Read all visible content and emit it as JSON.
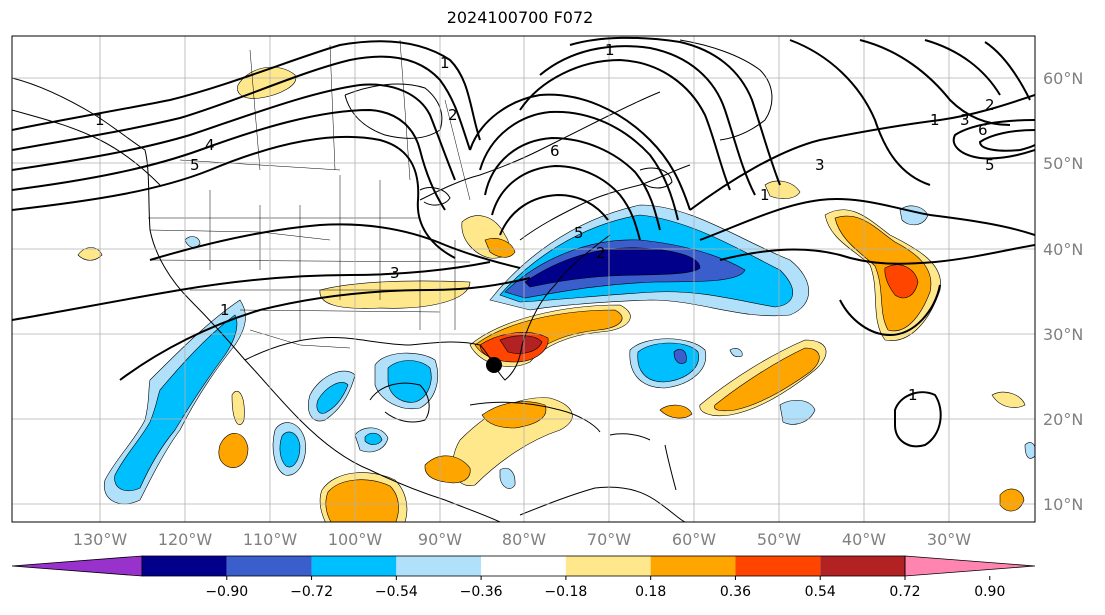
{
  "title": "2024100700 F072",
  "longitude_labels": [
    "130°W",
    "120°W",
    "110°W",
    "100°W",
    "90°W",
    "80°W",
    "70°W",
    "60°W",
    "50°W",
    "40°W",
    "30°W"
  ],
  "latitude_labels": [
    "60°N",
    "50°N",
    "40°N",
    "30°N",
    "20°N",
    "10°N"
  ],
  "colorbar": {
    "ticks": [
      "−0.90",
      "−0.72",
      "−0.54",
      "−0.36",
      "−0.18",
      "0.18",
      "0.36",
      "0.54",
      "0.72",
      "0.90"
    ],
    "colors": [
      "#9932cc",
      "#00008b",
      "#3a5fcd",
      "#00bfff",
      "#b0e0fa",
      "#ffffff",
      "#ffe88c",
      "#ffa500",
      "#ff4500",
      "#b22222",
      "#ff85b0"
    ]
  },
  "contour_labels": [
    "1",
    "2",
    "3",
    "4",
    "5",
    "6",
    "1",
    "1",
    "2",
    "3",
    "6",
    "5",
    "1",
    "5",
    "3",
    "1",
    "2",
    "1",
    "1"
  ],
  "marker": {
    "name": "storm-location",
    "color": "#000000"
  }
}
